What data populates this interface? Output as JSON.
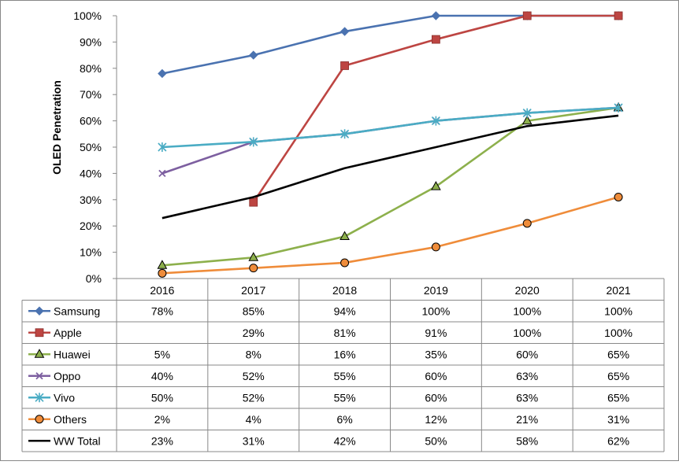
{
  "chart_data": {
    "type": "line",
    "ylabel": "OLED Penetration",
    "xlabel": "",
    "title": "",
    "ylim": [
      0,
      100
    ],
    "y_ticks": [
      "0%",
      "10%",
      "20%",
      "30%",
      "40%",
      "50%",
      "60%",
      "70%",
      "80%",
      "90%",
      "100%"
    ],
    "x": [
      "2016",
      "2017",
      "2018",
      "2019",
      "2020",
      "2021"
    ],
    "grid": false,
    "legend_placement": "data-table-left",
    "series": [
      {
        "name": "Samsung",
        "color": "#4a72b0",
        "marker": "diamond",
        "values": [
          78,
          85,
          94,
          100,
          100,
          100
        ],
        "labels": [
          "78%",
          "85%",
          "94%",
          "100%",
          "100%",
          "100%"
        ]
      },
      {
        "name": "Apple",
        "color": "#bd4542",
        "marker": "square",
        "values": [
          null,
          29,
          81,
          91,
          100,
          100
        ],
        "labels": [
          "",
          "29%",
          "81%",
          "91%",
          "100%",
          "100%"
        ]
      },
      {
        "name": "Huawei",
        "color": "#8db04c",
        "marker": "triangle",
        "values": [
          5,
          8,
          16,
          35,
          60,
          65
        ],
        "labels": [
          "5%",
          "8%",
          "16%",
          "35%",
          "60%",
          "65%"
        ]
      },
      {
        "name": "Oppo",
        "color": "#7d5fa0",
        "marker": "x",
        "values": [
          40,
          52,
          55,
          60,
          63,
          65
        ],
        "labels": [
          "40%",
          "52%",
          "55%",
          "60%",
          "63%",
          "65%"
        ]
      },
      {
        "name": "Vivo",
        "color": "#4aacc4",
        "marker": "star",
        "values": [
          50,
          52,
          55,
          60,
          63,
          65
        ],
        "labels": [
          "50%",
          "52%",
          "55%",
          "60%",
          "63%",
          "65%"
        ]
      },
      {
        "name": "Others",
        "color": "#ef8c3a",
        "marker": "circle",
        "values": [
          2,
          4,
          6,
          12,
          21,
          31
        ],
        "labels": [
          "2%",
          "4%",
          "6%",
          "12%",
          "21%",
          "31%"
        ]
      },
      {
        "name": "WW Total",
        "color": "#000000",
        "marker": "none",
        "values": [
          23,
          31,
          42,
          50,
          58,
          62
        ],
        "labels": [
          "23%",
          "31%",
          "42%",
          "50%",
          "58%",
          "62%"
        ]
      }
    ]
  }
}
